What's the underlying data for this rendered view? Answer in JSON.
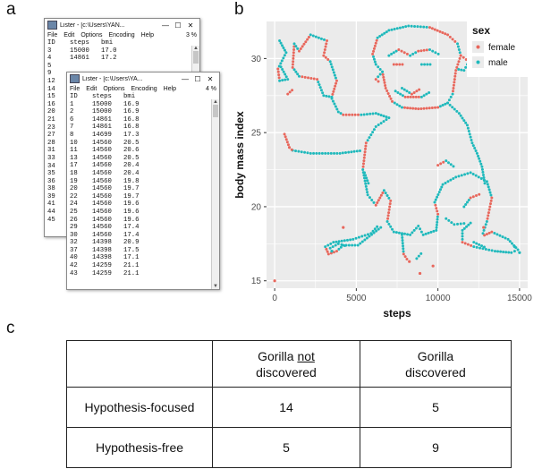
{
  "panels": {
    "a": "a",
    "b": "b",
    "c": "c"
  },
  "lister_back": {
    "title": "Lister - [c:\\Users\\YAN...",
    "controls": [
      "—",
      "☐",
      "✕"
    ],
    "menu": [
      "File",
      "Edit",
      "Options",
      "Encoding",
      "Help"
    ],
    "percent": "3 %",
    "rows": [
      [
        "ID",
        "steps",
        "bmi"
      ],
      [
        "3",
        "15000",
        "17.0"
      ],
      [
        "4",
        "14861",
        "17.2"
      ],
      [
        "5",
        "",
        ""
      ],
      [
        "9",
        "",
        ""
      ],
      [
        "12",
        "",
        ""
      ],
      [
        "14",
        "",
        ""
      ],
      [
        "15",
        "",
        ""
      ],
      [
        "16",
        "",
        ""
      ],
      [
        "20",
        "",
        ""
      ],
      [
        "21",
        "",
        ""
      ],
      [
        "23",
        "",
        ""
      ],
      [
        "27",
        "",
        ""
      ],
      [
        "28",
        "",
        ""
      ],
      [
        "31",
        "",
        ""
      ],
      [
        "33",
        "",
        ""
      ],
      [
        "34",
        "",
        ""
      ],
      [
        "35",
        "",
        ""
      ],
      [
        "36",
        "",
        ""
      ],
      [
        "38",
        "",
        ""
      ],
      [
        "39",
        "",
        ""
      ],
      [
        "41",
        "",
        ""
      ],
      [
        "44",
        "",
        ""
      ],
      [
        "45",
        "",
        ""
      ]
    ]
  },
  "lister_front": {
    "title": "Lister - [c:\\Users\\YA...",
    "controls": [
      "—",
      "☐",
      "✕"
    ],
    "menu": [
      "File",
      "Edit",
      "Options",
      "Encoding",
      "Help"
    ],
    "percent": "4 %",
    "rows": [
      [
        "ID",
        "steps",
        "bmi"
      ],
      [
        "1",
        "15000",
        "16.9"
      ],
      [
        "2",
        "15000",
        "16.9"
      ],
      [
        "6",
        "14861",
        "16.8"
      ],
      [
        "7",
        "14861",
        "16.8"
      ],
      [
        "8",
        "14699",
        "17.3"
      ],
      [
        "10",
        "14560",
        "20.5"
      ],
      [
        "11",
        "14560",
        "20.6"
      ],
      [
        "13",
        "14560",
        "20.5"
      ],
      [
        "17",
        "14560",
        "20.4"
      ],
      [
        "18",
        "14560",
        "20.4"
      ],
      [
        "19",
        "14560",
        "19.8"
      ],
      [
        "20",
        "14560",
        "19.7"
      ],
      [
        "22",
        "14560",
        "19.7"
      ],
      [
        "24",
        "14560",
        "19.6"
      ],
      [
        "25",
        "14560",
        "19.6"
      ],
      [
        "26",
        "14560",
        "19.6"
      ],
      [
        "29",
        "14560",
        "17.4"
      ],
      [
        "30",
        "14560",
        "17.4"
      ],
      [
        "32",
        "14398",
        "20.9"
      ],
      [
        "37",
        "14398",
        "17.5"
      ],
      [
        "40",
        "14398",
        "17.1"
      ],
      [
        "42",
        "14259",
        "21.1"
      ],
      [
        "43",
        "14259",
        "21.1"
      ]
    ]
  },
  "chart_data": {
    "type": "scatter",
    "xlabel": "steps",
    "ylabel": "body mass index",
    "xlim": [
      -500,
      15500
    ],
    "ylim": [
      14.5,
      32.5
    ],
    "xticks": [
      0,
      5000,
      10000,
      15000
    ],
    "yticks": [
      15,
      20,
      25,
      30
    ],
    "grid": true,
    "legend": {
      "title": "sex",
      "position": "right",
      "entries": [
        "female",
        "male"
      ]
    },
    "colors": {
      "female": "#e8675c",
      "male": "#1fb9bc",
      "panel": "#ebebeb",
      "grid": "#ffffff"
    },
    "shape_note": "points trace a gorilla figure",
    "series": [
      {
        "name": "female",
        "color": "#e8675c",
        "points": [
          [
            0,
            15
          ],
          [
            8250,
            16.3
          ],
          [
            8900,
            15.5
          ],
          [
            9700,
            16
          ],
          [
            4200,
            18.6
          ],
          [
            12800,
            18.6
          ]
        ]
      },
      {
        "name": "male",
        "color": "#1fb9bc",
        "points": [
          [
            14700,
            17.3
          ],
          [
            15000,
            16.9
          ],
          [
            3500,
            17
          ]
        ]
      }
    ]
  },
  "table": {
    "col_headers": [
      {
        "parts": [
          "Gorilla ",
          "not",
          "discovered"
        ],
        "underline_index": 1
      },
      {
        "parts": [
          "Gorilla",
          "discovered"
        ]
      }
    ],
    "rows": [
      {
        "label": "Hypothesis-focused",
        "values": [
          "14",
          "5"
        ]
      },
      {
        "label": "Hypothesis-free",
        "values": [
          "5",
          "9"
        ]
      }
    ]
  }
}
